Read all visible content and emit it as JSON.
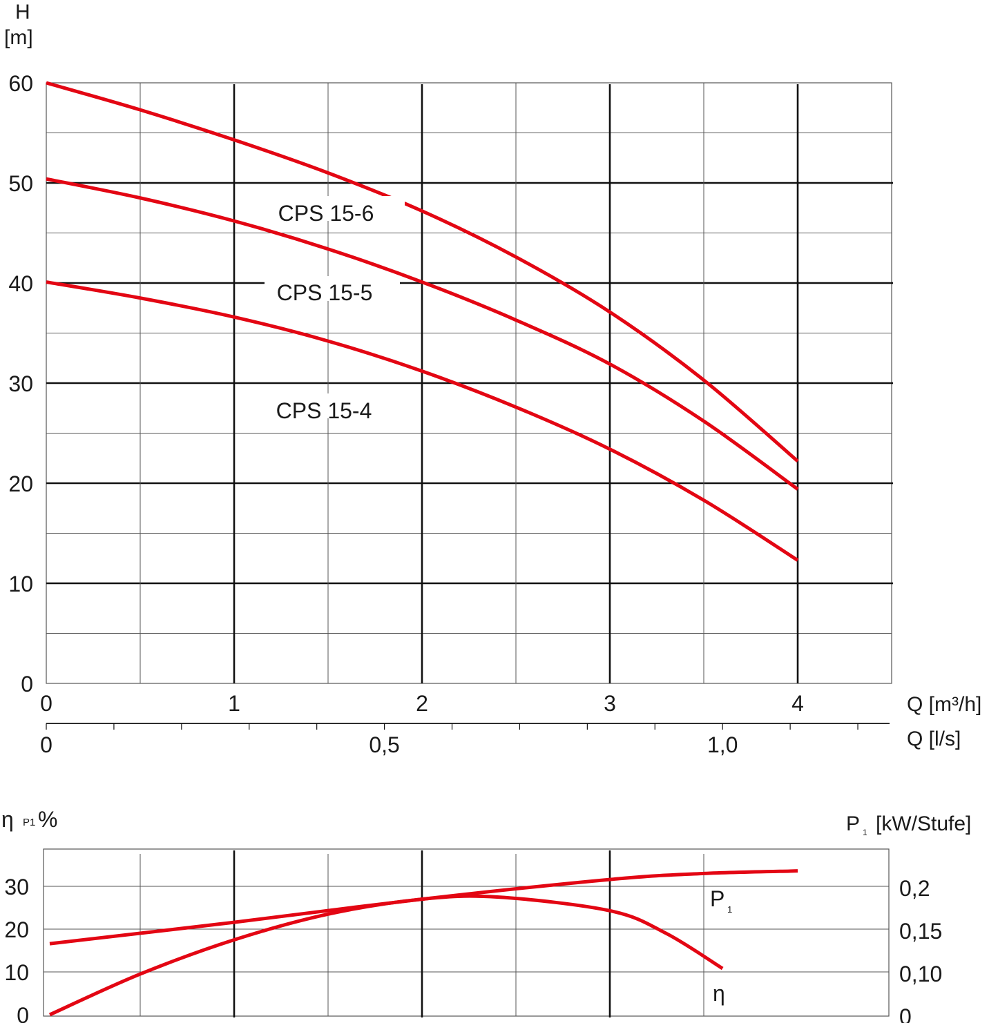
{
  "chart_data": [
    {
      "type": "line",
      "ylabel_symbol": "H",
      "ylabel_unit": "[m]",
      "xlabel": "Q [m³/h]",
      "xlabel2": "Q [l/s]",
      "xlim": [
        0,
        4.5
      ],
      "ylim": [
        0,
        60
      ],
      "x_ticks": [
        "0",
        "1",
        "2",
        "3",
        "4"
      ],
      "y_ticks": [
        "0",
        "10",
        "20",
        "30",
        "40",
        "50",
        "60"
      ],
      "x2_ticks": [
        {
          "value": 0,
          "label": "0"
        },
        {
          "value": 0.5,
          "label": "0,5"
        },
        {
          "value": 1.0,
          "label": "1,0"
        }
      ],
      "grid": true,
      "color": "#e30613",
      "series": [
        {
          "name": "CPS 15-6",
          "x": [
            0,
            0.5,
            1,
            1.5,
            2,
            2.5,
            3,
            3.5,
            4
          ],
          "y": [
            60,
            57.3,
            54.3,
            51,
            47.2,
            42.6,
            37.1,
            30.3,
            22.2
          ]
        },
        {
          "name": "CPS 15-5",
          "x": [
            0,
            0.5,
            1,
            1.5,
            2,
            2.5,
            3,
            3.5,
            4
          ],
          "y": [
            50.4,
            48.5,
            46.2,
            43.4,
            40.1,
            36.3,
            31.9,
            26.2,
            19.4
          ]
        },
        {
          "name": "CPS 15-4",
          "x": [
            0,
            0.5,
            1,
            1.5,
            2,
            2.5,
            3,
            3.5,
            4
          ],
          "y": [
            40.1,
            38.5,
            36.6,
            34.2,
            31.2,
            27.6,
            23.4,
            18.3,
            12.3
          ]
        }
      ]
    },
    {
      "type": "line",
      "ylabel_left": "η",
      "ylabel_left_sub": "P1",
      "ylabel_left_unit": "%",
      "ylabel_right": "P",
      "ylabel_right_sub": "1",
      "ylabel_right_unit": "[kW/Stufe]",
      "xlim": [
        0,
        4.5
      ],
      "y_ticks_left": [
        "0",
        "10",
        "20",
        "30"
      ],
      "y_ticks_right": [
        {
          "value": 0,
          "label": "0"
        },
        {
          "value": 0.1,
          "label": "0,10"
        },
        {
          "value": 0.15,
          "label": "0,15"
        },
        {
          "value": 0.2,
          "label": "0,2"
        }
      ],
      "grid": true,
      "color": "#e30613",
      "series": [
        {
          "name": "P1",
          "label_main": "P",
          "label_sub": "1",
          "axis": "right",
          "x": [
            0,
            1,
            2,
            3,
            3.5,
            4
          ],
          "y": [
            0.133,
            0.158,
            0.185,
            0.208,
            0.215,
            0.218
          ]
        },
        {
          "name": "η",
          "label_main": "η",
          "axis": "left",
          "x": [
            0,
            0.5,
            1,
            1.5,
            2,
            2.4,
            3,
            3.3,
            3.6
          ],
          "y": [
            0,
            9.5,
            17.5,
            23.5,
            27,
            27.5,
            24.3,
            19,
            10.8
          ]
        }
      ]
    }
  ]
}
